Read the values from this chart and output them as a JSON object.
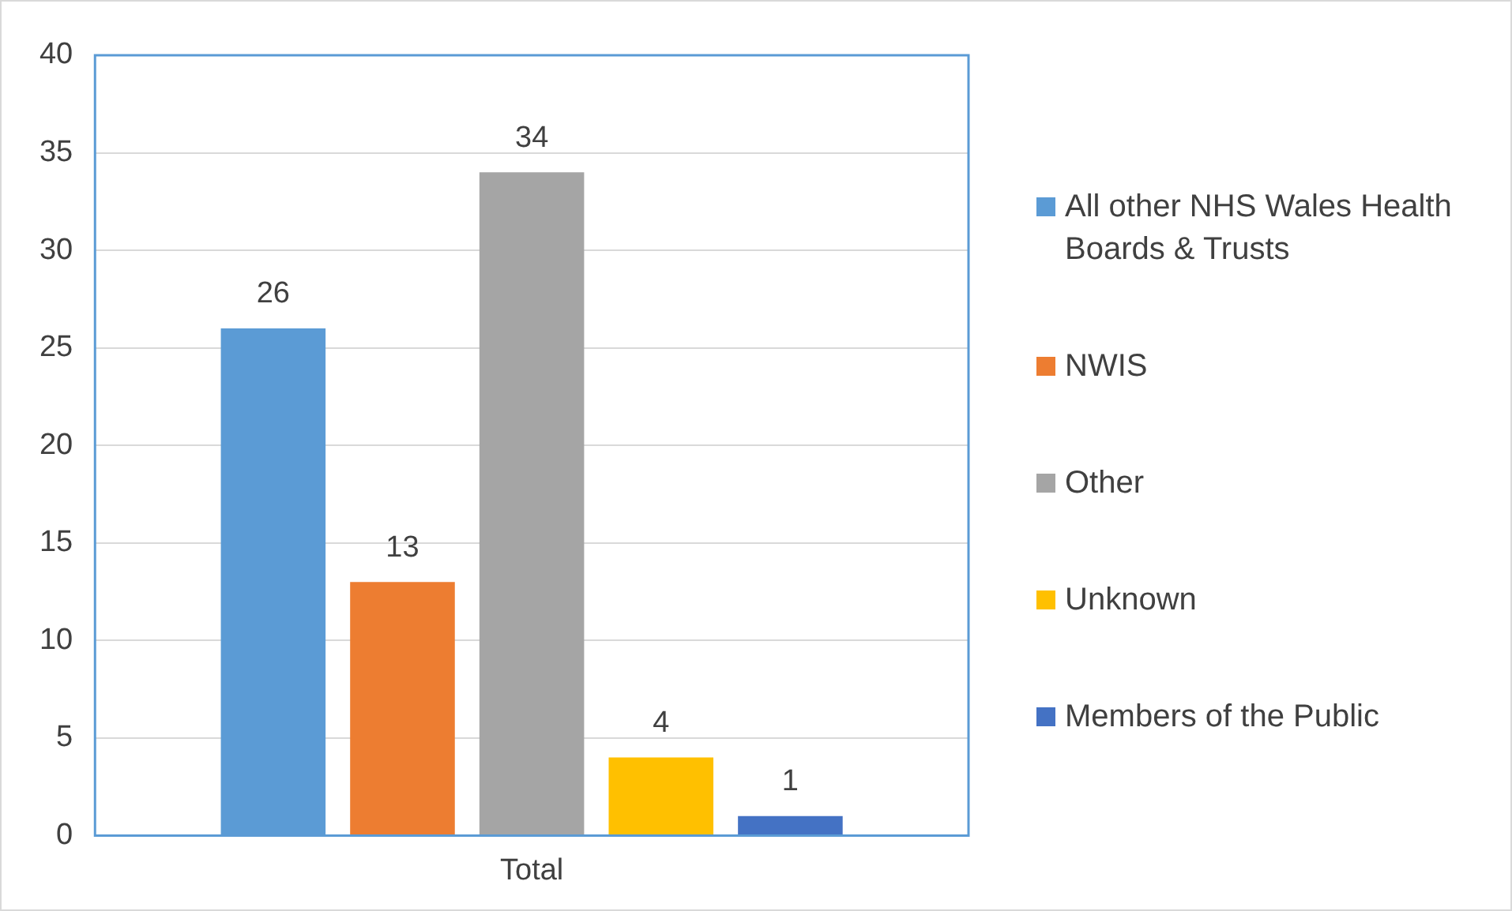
{
  "chart_data": {
    "type": "bar",
    "categories": [
      "Total"
    ],
    "series": [
      {
        "name": "All other NHS Wales Health Boards & Trusts",
        "color": "#5b9bd5",
        "values": [
          26
        ]
      },
      {
        "name": "NWIS",
        "color": "#ed7d31",
        "values": [
          13
        ]
      },
      {
        "name": "Other",
        "color": "#a5a5a5",
        "values": [
          34
        ]
      },
      {
        "name": "Unknown",
        "color": "#ffc000",
        "values": [
          4
        ]
      },
      {
        "name": "Members of the Public",
        "color": "#4472c4",
        "values": [
          1
        ]
      }
    ],
    "ylim": [
      0,
      40
    ],
    "yticks": [
      0,
      5,
      10,
      15,
      20,
      25,
      30,
      35,
      40
    ],
    "grid": "y",
    "legend": "right",
    "data_labels": true
  }
}
